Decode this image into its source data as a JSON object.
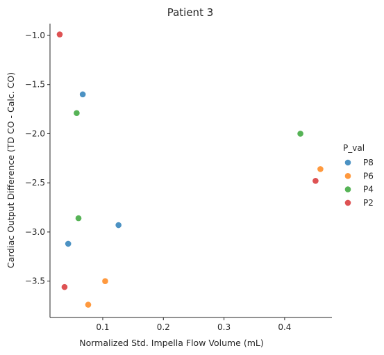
{
  "chart_data": {
    "type": "scatter",
    "title": "Patient 3",
    "xlabel": "Normalized Std. Impella Flow Volume (mL)",
    "ylabel": "Cardiac Output Difference (TD CO - Calc. CO)",
    "xlim": [
      0.013,
      0.478
    ],
    "ylim": [
      -3.87,
      -0.88
    ],
    "xticks": [
      0.1,
      0.2,
      0.3,
      0.4
    ],
    "xtick_labels": [
      "0.1",
      "0.2",
      "0.3",
      "0.4"
    ],
    "yticks": [
      -1.0,
      -1.5,
      -2.0,
      -2.5,
      -3.0,
      -3.5
    ],
    "ytick_labels": [
      "−1.0",
      "−1.5",
      "−2.0",
      "−2.5",
      "−3.0",
      "−3.5"
    ],
    "grid": false,
    "legend": {
      "title": "P_val",
      "placement": "right"
    },
    "series": [
      {
        "name": "P8",
        "color": "#1f77b4",
        "points": [
          [
            0.067,
            -1.6
          ],
          [
            0.126,
            -2.93
          ],
          [
            0.043,
            -3.12
          ]
        ]
      },
      {
        "name": "P6",
        "color": "#ff7f0e",
        "points": [
          [
            0.459,
            -2.36
          ],
          [
            0.104,
            -3.5
          ],
          [
            0.076,
            -3.74
          ]
        ]
      },
      {
        "name": "P4",
        "color": "#2ca02c",
        "points": [
          [
            0.057,
            -1.79
          ],
          [
            0.426,
            -2.0
          ],
          [
            0.06,
            -2.86
          ]
        ]
      },
      {
        "name": "P2",
        "color": "#d62728",
        "points": [
          [
            0.029,
            -0.99
          ],
          [
            0.451,
            -2.48
          ],
          [
            0.037,
            -3.56
          ]
        ]
      }
    ]
  }
}
